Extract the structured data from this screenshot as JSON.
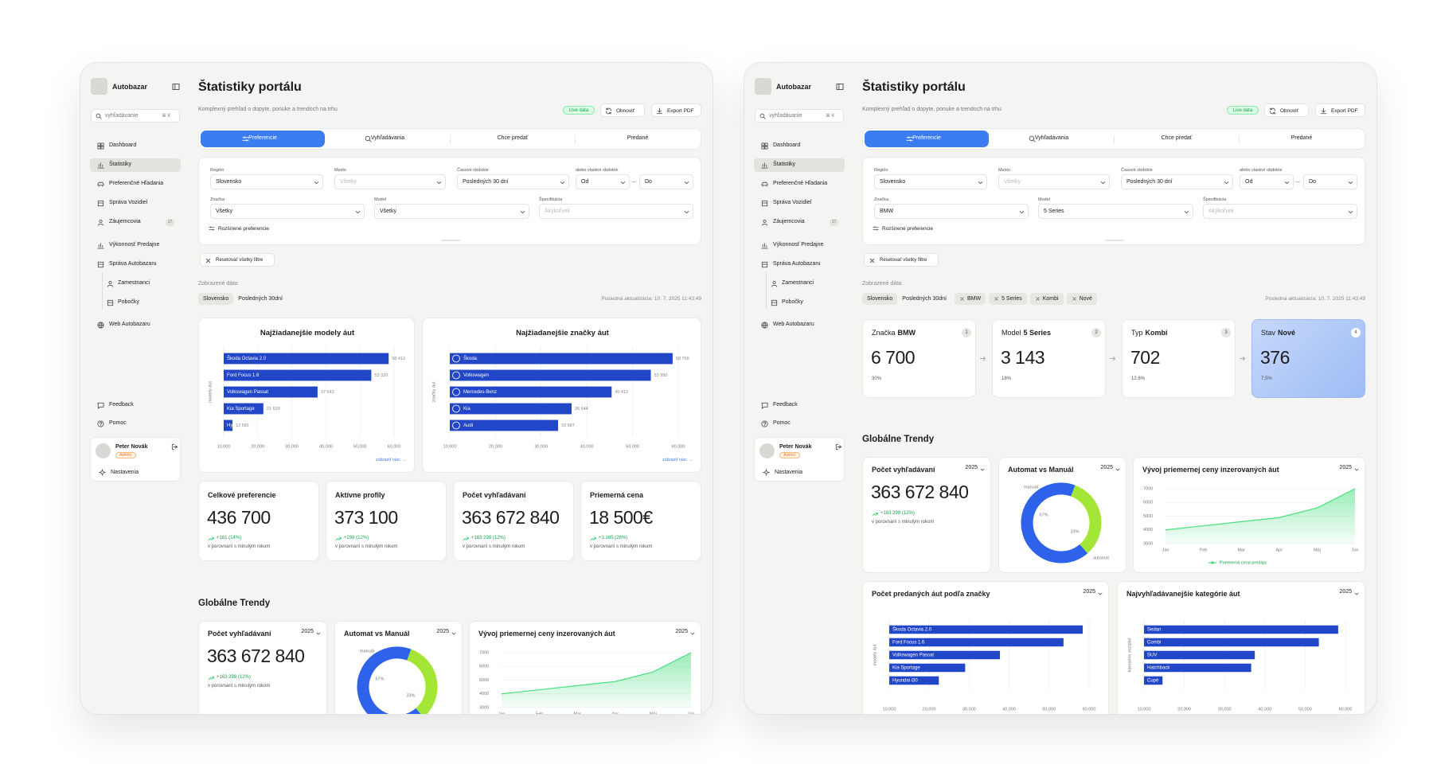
{
  "shell": {
    "brand": "Autobazar",
    "search": "vyhľadávanie",
    "shortcut": "⌘ K",
    "nav": [
      "Dashboard",
      "Štatistiky",
      "Preferenčné Hľadania",
      "Správa Vozidiel",
      "Záujemcovia",
      "Výkonnosť Predajne",
      "Správa Autobazaru",
      "Zamestnanci",
      "Pobočky",
      "Web Autobazaru"
    ],
    "nav_badge": "17",
    "bottom_nav": [
      "Feedback",
      "Pomoc"
    ],
    "user": {
      "name": "Peter Novák",
      "role": "Admin",
      "settings": "Nastavenia"
    },
    "title": "Štatistiky portálu",
    "subtitle": "Komplexný prehľad o dopyte, ponuke a trendoch na trhu",
    "live": "Live data",
    "refresh": "Obnoviť",
    "export": "Export PDF",
    "tabs": [
      "Preferencie",
      "Vyhľadávania",
      "Chce predať",
      "Predané"
    ],
    "filter_labels": [
      "Región",
      "Mesto",
      "Časové obdobie",
      "alebo vlastné obdobie",
      "Značka",
      "Model",
      "Špecifikácia"
    ],
    "advanced": "Rozšírené preferencie",
    "reset": "Resetovať všetky filtre",
    "shown": "Zobrazené dáta:",
    "updated": "Posledná aktualizácia: 10. 7. 2025 11:43:49",
    "trends_title": "Globálne Trendy"
  },
  "trends": {
    "search": {
      "title": "Počet vyhľadávaní",
      "year": "2025",
      "value": "363 672 840",
      "change": "+163 298 (12%)",
      "note": "v porovnaní s minulým rokom"
    },
    "donut": {
      "type": "pie",
      "title": "Automat vs Manuál",
      "year": "2025",
      "categories": [
        "manuál",
        "automat"
      ],
      "values": [
        67,
        33
      ],
      "value_labels": [
        "67%",
        "33%"
      ],
      "colors": [
        "#2f62ea",
        "#a3e635"
      ]
    },
    "line": {
      "type": "line",
      "title": "Vývoj priemernej ceny inzerovaných áut",
      "year": "2025",
      "categories": [
        "Jan",
        "Feb",
        "Mar",
        "Apr",
        "Máj",
        "Jún"
      ],
      "series": [
        {
          "name": "Priemerná cena predaja",
          "color": "#4ade80",
          "values": [
            4000,
            4300,
            4600,
            4900,
            5600,
            7000
          ]
        }
      ],
      "ylim": [
        3000,
        7000
      ],
      "yticks": [
        3000,
        4000,
        5000,
        6000,
        7000
      ]
    }
  },
  "panels": [
    {
      "filters": [
        "Slovensko",
        "Všetky",
        "Posledných 30 dní",
        "Od",
        "Do",
        "Všetky",
        "Všetky",
        "Akýkoľvek"
      ],
      "chips": [
        "Slovensko",
        "Posledných 30dní"
      ],
      "top_charts": [
        {
          "type": "bar",
          "title": "Najžiadanejšie modely áut",
          "ylabel": "modely áut",
          "link": "zobraziť viac →",
          "color": "#2146c7",
          "categories": [
            "Škoda Octavia 2.0",
            "Ford Focus 1.6",
            "Volkswagen Passat",
            "Kia Sportage",
            "Hyundai i30"
          ],
          "values": [
            58412,
            53320,
            37543,
            21639,
            12581
          ],
          "value_labels": [
            "58 412",
            "53 320",
            "37 543",
            "21 639",
            "12 581"
          ],
          "xlim": [
            10000,
            60000
          ],
          "xticks": [
            {
              "value": 10000,
              "label": "10,000"
            },
            {
              "value": 20000,
              "label": "20,000"
            },
            {
              "value": 30000,
              "label": "30,000"
            },
            {
              "value": 40000,
              "label": "40,000"
            },
            {
              "value": 50000,
              "label": "50,000"
            },
            {
              "value": 60000,
              "label": "60,000"
            }
          ]
        },
        {
          "type": "bar",
          "title": "Najžiadanejšie značky áut",
          "ylabel": "značky áut",
          "link": "zobraziť viac →",
          "color": "#2146c7",
          "categories": [
            "Škoda",
            "Volkswagen",
            "Mercedes-Benz",
            "Kia",
            "Audi"
          ],
          "values": [
            58765,
            53990,
            45412,
            36644,
            33687
          ],
          "value_labels": [
            "58 765",
            "53 990",
            "45 412",
            "36 644",
            "33 687"
          ],
          "xlim": [
            10000,
            60000
          ],
          "xticks": [
            {
              "value": 10000,
              "label": "10,000"
            },
            {
              "value": 20000,
              "label": "20,000"
            },
            {
              "value": 30000,
              "label": "30,000"
            },
            {
              "value": 40000,
              "label": "40,000"
            },
            {
              "value": 50000,
              "label": "50,000"
            },
            {
              "value": 60000,
              "label": "60,000"
            }
          ]
        }
      ],
      "kpis": [
        {
          "title": "Celkové preferencie",
          "value": "436 700",
          "change": "+161 (14%)",
          "note": "v porovnaní s minulým rokom"
        },
        {
          "title": "Aktívne profily",
          "value": "373 100",
          "change": "+298 (12%)",
          "note": "v porovnaní s minulým rokom"
        },
        {
          "title": "Počet vyhľadávaní",
          "value": "363 672 840",
          "change": "+163 298 (12%)",
          "note": "v porovnaní s minulým rokom"
        },
        {
          "title": "Priemerná cena",
          "value": "18 500€",
          "change": "+1 165 (26%)",
          "note": "v porovnaní s minulým rokom"
        }
      ]
    },
    {
      "filters": [
        "Slovensko",
        "Všetky",
        "Posledných 30 dní",
        "Od",
        "Do",
        "BMW",
        "5 Series",
        "Akýkoľvek"
      ],
      "chips": [
        "Slovensko",
        "Posledných 30dní",
        "BMW",
        "5 Series",
        "Kombi",
        "Nové"
      ],
      "funnel": [
        {
          "label": "Značka",
          "value_name": "BMW",
          "step": "1",
          "count": "6 700",
          "share": "30%"
        },
        {
          "label": "Model",
          "value_name": "5 Series",
          "step": "2",
          "count": "3 143",
          "share": "18%"
        },
        {
          "label": "Typ",
          "value_name": "Kombi",
          "step": "3",
          "count": "702",
          "share": "12,6%"
        },
        {
          "label": "Stav",
          "value_name": "Nové",
          "step": "4",
          "count": "376",
          "share": "7,5%"
        }
      ],
      "bottom_charts": [
        {
          "type": "bar",
          "title": "Počet predaných áut podľa značky",
          "year": "2025",
          "ylabel": "modely áut",
          "color": "#2146c7",
          "categories": [
            "Škoda Octavia 2.0",
            "Ford Focus 1.6",
            "Volkswagen Passat",
            "Kia Sportage",
            "Hyundai i30"
          ],
          "values": [
            58400,
            53600,
            37700,
            29000,
            22400
          ],
          "xlim": [
            10000,
            60000
          ],
          "xticks": [
            {
              "value": 10000,
              "label": "10,000"
            },
            {
              "value": 20000,
              "label": "20,000"
            },
            {
              "value": 30000,
              "label": "30,000"
            },
            {
              "value": 40000,
              "label": "40,000"
            },
            {
              "value": 50000,
              "label": "50,000"
            },
            {
              "value": 60000,
              "label": "60,000"
            }
          ]
        },
        {
          "type": "bar",
          "title": "Najvyhľadávanejšie kategórie áut",
          "year": "2025",
          "ylabel": "karosérie vozidiel",
          "color": "#2146c7",
          "categories": [
            "Sedan",
            "Combi",
            "SUV",
            "Hatchback",
            "Cupé"
          ],
          "values": [
            58200,
            53400,
            37500,
            36600,
            14600
          ],
          "xlim": [
            10000,
            60000
          ],
          "xticks": [
            {
              "value": 10000,
              "label": "10,000"
            },
            {
              "value": 20000,
              "label": "20,000"
            },
            {
              "value": 30000,
              "label": "30,000"
            },
            {
              "value": 40000,
              "label": "40,000"
            },
            {
              "value": 50000,
              "label": "50,000"
            },
            {
              "value": 60000,
              "label": "60,000"
            }
          ]
        }
      ]
    }
  ]
}
